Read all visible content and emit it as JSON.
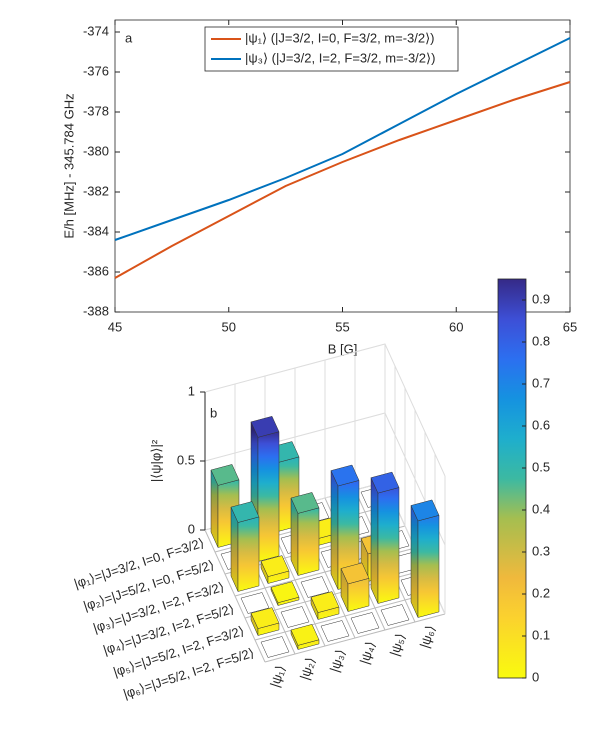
{
  "chart_data": [
    {
      "type": "line",
      "panel_label": "a",
      "xlabel": "B [G]",
      "ylabel": "E/h [MHz] - 345.784 GHz",
      "x": [
        45,
        47.5,
        50,
        52.5,
        55,
        57.5,
        60,
        62.5,
        65
      ],
      "series": [
        {
          "name": "|ψ₁⟩ (|J=3/2, I=0, F=3/2, m=-3/2⟩)",
          "color": "#d95319",
          "values": [
            -386.3,
            -384.7,
            -383.2,
            -381.7,
            -380.5,
            -379.4,
            -378.4,
            -377.4,
            -376.5
          ]
        },
        {
          "name": "|ψ₃⟩ (|J=3/2, I=2, F=3/2, m=-3/2⟩)",
          "color": "#0072bd",
          "values": [
            -384.4,
            -383.4,
            -382.4,
            -381.3,
            -380.1,
            -378.6,
            -377.1,
            -375.7,
            -374.3
          ]
        }
      ],
      "xlim": [
        45,
        65
      ],
      "xticks": [
        45,
        50,
        55,
        60,
        65
      ],
      "ylim": [
        -388,
        -373.4
      ],
      "yticks": [
        -388,
        -386,
        -384,
        -382,
        -380,
        -378,
        -376,
        -374
      ],
      "legend": "top"
    },
    {
      "type": "bar3d",
      "panel_label": "b",
      "zlabel": "|⟨ψ|φ⟩|²",
      "rows": [
        "|φ₁⟩=|J=3/2, I=0, F=3/2⟩",
        "|φ₂⟩=|J=5/2, I=0, F=5/2⟩",
        "|φ₃⟩=|J=3/2, I=2, F=3/2⟩",
        "|φ₄⟩=|J=3/2, I=2, F=5/2⟩",
        "|φ₅⟩=|J=5/2, I=2, F=3/2⟩",
        "|φ₆⟩=|J=5/2, I=2, F=5/2⟩"
      ],
      "columns": [
        "|ψ₁⟩",
        "|ψ₂⟩",
        "|ψ₃⟩",
        "|ψ₄⟩",
        "|ψ₅⟩",
        "|ψ₆⟩"
      ],
      "values": [
        [
          0.45,
          0.02,
          0.5,
          0,
          0,
          0
        ],
        [
          0,
          0.9,
          0,
          0.05,
          0,
          0
        ],
        [
          0.5,
          0.05,
          0.45,
          0,
          0,
          0
        ],
        [
          0,
          0.02,
          0,
          0.75,
          0.2,
          0
        ],
        [
          0.05,
          0,
          0.05,
          0.2,
          0.8,
          0
        ],
        [
          0,
          0.03,
          0,
          0,
          0,
          0.7
        ]
      ],
      "zlim": [
        0,
        1
      ],
      "zticks": [
        0,
        0.5,
        1
      ],
      "colormap": "parula",
      "clim": [
        0,
        0.95
      ],
      "cticks": [
        0,
        0.1,
        0.2,
        0.3,
        0.4,
        0.5,
        0.6,
        0.7,
        0.8,
        0.9
      ]
    }
  ]
}
